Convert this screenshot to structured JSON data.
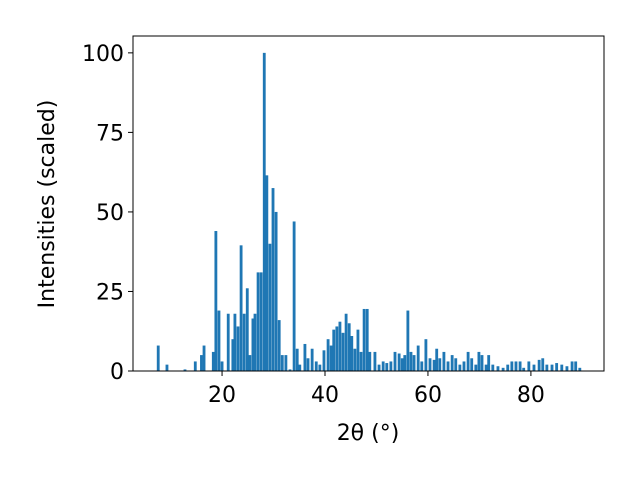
{
  "chart_data": {
    "type": "bar",
    "x_label": "2θ (°)",
    "y_label": "Intensities (scaled)",
    "color": "#1f77b4",
    "x": [
      7.6,
      9.3,
      12.8,
      14.8,
      16,
      16.5,
      18.3,
      18.8,
      19.4,
      20,
      21.2,
      22.1,
      22.5,
      23.1,
      23.7,
      24.3,
      24.9,
      25.4,
      26,
      26.4,
      27,
      27.6,
      28.2,
      28.7,
      29.3,
      29.9,
      30.5,
      31.1,
      31.7,
      32.4,
      33.2,
      34,
      34.6,
      35.1,
      36.1,
      36.7,
      37.5,
      38.3,
      39,
      39.8,
      40.6,
      41.2,
      41.7,
      42.3,
      42.9,
      43.5,
      44.1,
      44.7,
      45.2,
      45.8,
      46.4,
      47,
      47.6,
      48.2,
      48.7,
      49.7,
      50.5,
      51.3,
      52,
      52.8,
      53.6,
      54.4,
      55,
      55.5,
      56.1,
      56.7,
      57.3,
      58.1,
      58.8,
      59.6,
      60.4,
      61.2,
      61.7,
      62.3,
      63.1,
      63.9,
      64.7,
      65.4,
      66.2,
      67,
      67.8,
      68.5,
      69.3,
      69.9,
      70.5,
      71.3,
      71.8,
      72.6,
      73.6,
      74.6,
      75.5,
      76.3,
      77.1,
      77.9,
      78.6,
      79.6,
      80.6,
      81.6,
      82.3,
      83.1,
      84.1,
      85,
      86,
      87,
      88,
      88.7,
      89.5
    ],
    "values": [
      8,
      2,
      0.5,
      3,
      5,
      8,
      6,
      44,
      19,
      3,
      18,
      10,
      18,
      14,
      39.5,
      18,
      26,
      5,
      16.5,
      18,
      31,
      31,
      100,
      61.5,
      40,
      57.5,
      50,
      16,
      5,
      5,
      0.5,
      47,
      7,
      2,
      8.5,
      4,
      7,
      3,
      2,
      6.5,
      10,
      8,
      13,
      14,
      15.5,
      12,
      18,
      15,
      11,
      7,
      13,
      6,
      19.5,
      19.5,
      6,
      6,
      2,
      3,
      2.5,
      3,
      6,
      5.5,
      4,
      5,
      19,
      6,
      5,
      8,
      3,
      10,
      4,
      3.5,
      7,
      4,
      6,
      3,
      5,
      4,
      2,
      3,
      6,
      4,
      2,
      6,
      5,
      2,
      5,
      2,
      1.5,
      1,
      2,
      3,
      3,
      3,
      1,
      3,
      2,
      3.5,
      4,
      2,
      2,
      2.5,
      2,
      1.5,
      3,
      3,
      1
    ],
    "xlim": [
      2.7,
      94.2
    ],
    "xticks": [
      20,
      40,
      60,
      80
    ],
    "ylim": [
      0,
      105.3
    ],
    "yticks": [
      0,
      25,
      50,
      75,
      100
    ]
  }
}
